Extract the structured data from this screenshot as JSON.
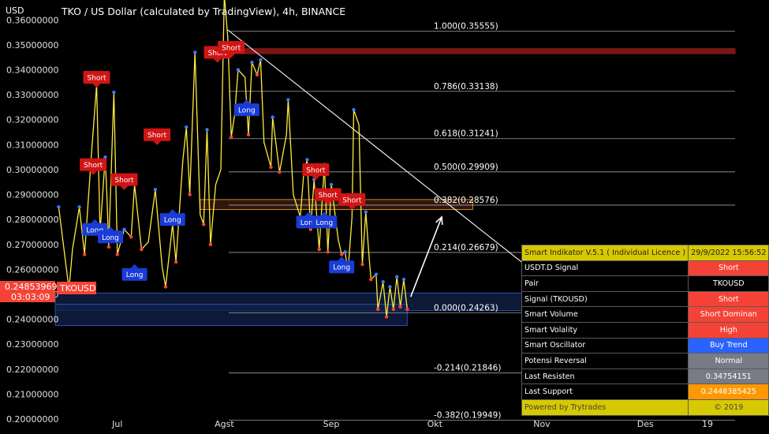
{
  "header": {
    "currency": "USD",
    "title": "TKO / US Dollar (calculated by TradingView), 4h, BINANCE"
  },
  "price_tag": {
    "price": "0.24853969",
    "countdown": "03:03:09",
    "symbol": "TKOUSD"
  },
  "panel": {
    "title": "Smart Indikator V.5.1 ( Individual Licence )",
    "timestamp": "29/9/2022 15:56:52",
    "rows": [
      {
        "label": "USDT.D Signal",
        "value": "Short",
        "color": "#f44336"
      },
      {
        "label": "Pair",
        "value": "TKOUSD",
        "color": "#000000"
      },
      {
        "label": "Signal (TKOUSD)",
        "value": "Short",
        "color": "#f44336"
      },
      {
        "label": "Smart Volume",
        "value": "Short Dominan",
        "color": "#f44336"
      },
      {
        "label": "Smart Volality",
        "value": "High",
        "color": "#f44336"
      },
      {
        "label": "Smart Oscillator",
        "value": "Buy Trend",
        "color": "#2962ff"
      },
      {
        "label": "Potensi Reversal",
        "value": "Normal",
        "color": "#787b86"
      },
      {
        "label": "Last Resisten",
        "value": "0.34754151",
        "color": "#787b86"
      },
      {
        "label": "Last Support",
        "value": "0.2448385425",
        "color": "#ff9800"
      }
    ],
    "footer": "Powered by Trytrades",
    "copyright": "© 2019"
  },
  "chart_data": {
    "type": "line",
    "title": "TKO / US Dollar (calculated by TradingView), 4h, BINANCE",
    "ylabel": "USD",
    "ylim": [
      0.194,
      0.368
    ],
    "y_ticks": [
      "0.36000000",
      "0.35000000",
      "0.34000000",
      "0.33000000",
      "0.32000000",
      "0.31000000",
      "0.30000000",
      "0.29000000",
      "0.28000000",
      "0.27000000",
      "0.26000000",
      "0.25000000",
      "0.24000000",
      "0.23000000",
      "0.22000000",
      "0.21000000",
      "0.20000000"
    ],
    "y_tick_values": [
      0.36,
      0.35,
      0.34,
      0.33,
      0.32,
      0.31,
      0.3,
      0.29,
      0.28,
      0.27,
      0.26,
      0.25,
      0.24,
      0.23,
      0.22,
      0.21,
      0.2
    ],
    "x_ticks": [
      "Jul",
      "Agst",
      "Sep",
      "Okt",
      "Nov",
      "Des",
      "19"
    ],
    "x_tick_days": [
      14,
      45,
      76,
      106,
      137,
      167,
      185
    ],
    "xlim": [
      -4,
      193
    ],
    "x_unit": "days from 2022-06-17",
    "fib_levels": [
      {
        "label": "1.000(0.35555)",
        "value": 0.35555
      },
      {
        "label": "0.786(0.33138)",
        "value": 0.33138
      },
      {
        "label": "0.618(0.31241)",
        "value": 0.31241
      },
      {
        "label": "0.500(0.29909)",
        "value": 0.29909
      },
      {
        "label": "0.382(0.28576)",
        "value": 0.28576
      },
      {
        "label": "0.214(0.26679)",
        "value": 0.26679
      },
      {
        "label": "0.000(0.24263)",
        "value": 0.24263
      },
      {
        "label": "-0.214(0.21846)",
        "value": 0.21846
      },
      {
        "label": "-0.382(0.19949)",
        "value": 0.19949
      }
    ],
    "zigzag_series": {
      "x": [
        -3,
        0,
        1,
        3,
        4.5,
        6.5,
        8,
        9,
        10.5,
        11,
        11.5,
        13,
        14,
        16,
        18,
        19,
        21,
        23,
        25,
        27,
        28,
        30,
        31,
        33,
        34,
        35,
        36.5,
        38,
        39,
        40,
        41,
        42.5,
        44,
        45,
        46,
        47,
        48,
        49,
        51,
        52,
        53,
        54.5,
        55.5,
        56.5,
        58.5,
        59,
        61,
        63,
        63.5,
        65,
        67,
        68,
        69,
        70,
        71,
        72.5,
        74,
        75,
        76,
        78,
        79,
        80,
        80.5,
        81,
        82,
        82.5,
        84,
        85,
        86,
        87,
        87.5,
        89,
        89.5,
        91,
        92,
        93,
        94,
        95,
        96,
        97,
        98
      ],
      "values": [
        0.285,
        0.252,
        0.268,
        0.285,
        0.266,
        0.306,
        0.334,
        0.275,
        0.305,
        0.289,
        0.269,
        0.331,
        0.266,
        0.276,
        0.273,
        0.294,
        0.268,
        0.271,
        0.292,
        0.261,
        0.253,
        0.278,
        0.263,
        0.304,
        0.317,
        0.29,
        0.347,
        0.282,
        0.278,
        0.316,
        0.27,
        0.294,
        0.3,
        0.37,
        0.353,
        0.313,
        0.322,
        0.34,
        0.337,
        0.314,
        0.343,
        0.338,
        0.344,
        0.311,
        0.301,
        0.321,
        0.299,
        0.314,
        0.328,
        0.29,
        0.281,
        0.298,
        0.304,
        0.276,
        0.296,
        0.268,
        0.302,
        0.267,
        0.294,
        0.272,
        0.266,
        0.267,
        0.262,
        0.262,
        0.281,
        0.324,
        0.318,
        0.262,
        0.283,
        0.264,
        0.256,
        0.258,
        0.244,
        0.255,
        0.241,
        0.253,
        0.244,
        0.257,
        0.245,
        0.256,
        0.244
      ]
    },
    "signals": [
      {
        "type": "Short",
        "x": 8,
        "y": 0.337
      },
      {
        "type": "Short",
        "x": 7,
        "y": 0.302
      },
      {
        "type": "Short",
        "x": 16,
        "y": 0.296
      },
      {
        "type": "Short",
        "x": 25.5,
        "y": 0.314
      },
      {
        "type": "Short",
        "x": 43,
        "y": 0.347
      },
      {
        "type": "Short",
        "x": 47,
        "y": 0.349
      },
      {
        "type": "Short",
        "x": 71.5,
        "y": 0.3
      },
      {
        "type": "Short",
        "x": 75,
        "y": 0.29
      },
      {
        "type": "Short",
        "x": 82,
        "y": 0.288
      },
      {
        "type": "Long",
        "x": 7.5,
        "y": 0.276
      },
      {
        "type": "Long",
        "x": 12,
        "y": 0.273
      },
      {
        "type": "Long",
        "x": 19,
        "y": 0.258
      },
      {
        "type": "Long",
        "x": 30,
        "y": 0.28
      },
      {
        "type": "Long",
        "x": 51.5,
        "y": 0.324
      },
      {
        "type": "Long",
        "x": 69.5,
        "y": 0.279
      },
      {
        "type": "Long",
        "x": 74,
        "y": 0.279
      },
      {
        "type": "Long",
        "x": 79,
        "y": 0.261
      }
    ],
    "zones": [
      {
        "kind": "resistance",
        "y1": 0.3485,
        "y2": 0.3465,
        "x_from": 46
      },
      {
        "kind": "supply",
        "y1": 0.288,
        "y2": 0.284,
        "x_from": 38,
        "x_to": 117
      },
      {
        "kind": "support",
        "y1": 0.2505,
        "y2": 0.2435,
        "x_from": -4
      },
      {
        "kind": "support",
        "y1": 0.246,
        "y2": 0.2375,
        "x_from": -4,
        "x_to": 98
      }
    ],
    "trendline": {
      "from": [
        46,
        0.356
      ],
      "to": [
        132,
        0.262
      ]
    },
    "projection_arrow": {
      "from": [
        99,
        0.249
      ],
      "to": [
        108,
        0.281
      ]
    },
    "colors": {
      "zigzag": "#ffeb3b",
      "short": "#d01515",
      "long": "#1a3cd6",
      "fib": "#c8c8c8",
      "trendline": "#e8e8e8"
    }
  }
}
